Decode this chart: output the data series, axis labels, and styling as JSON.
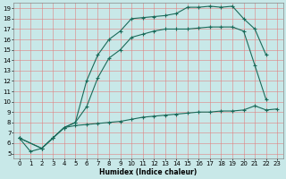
{
  "xlabel": "Humidex (Indice chaleur)",
  "bg_color": "#c8e8e8",
  "line_color": "#1a6b5a",
  "grid_color": "#e08080",
  "xlim": [
    -0.5,
    23.5
  ],
  "ylim": [
    4.5,
    19.5
  ],
  "xticks": [
    0,
    1,
    2,
    3,
    4,
    5,
    6,
    7,
    8,
    9,
    10,
    11,
    12,
    13,
    14,
    15,
    16,
    17,
    18,
    19,
    20,
    21,
    22,
    23
  ],
  "yticks": [
    5,
    6,
    7,
    8,
    9,
    10,
    11,
    12,
    13,
    14,
    15,
    16,
    17,
    18,
    19
  ],
  "line1_x": [
    0,
    1,
    2,
    3,
    4,
    5,
    6,
    7,
    8,
    9,
    10,
    11,
    12,
    13,
    14,
    15,
    16,
    17,
    18,
    19,
    20,
    21,
    22,
    23
  ],
  "line1_y": [
    6.5,
    5.2,
    5.5,
    6.5,
    7.5,
    7.7,
    7.8,
    7.9,
    8.0,
    8.1,
    8.3,
    8.5,
    8.6,
    8.7,
    8.8,
    8.9,
    9.0,
    9.0,
    9.1,
    9.1,
    9.2,
    9.6,
    9.2,
    9.3
  ],
  "line2_x": [
    0,
    2,
    3,
    4,
    5,
    6,
    7,
    8,
    9,
    10,
    11,
    12,
    13,
    14,
    15,
    16,
    17,
    18,
    19,
    20,
    21,
    22
  ],
  "line2_y": [
    6.5,
    5.5,
    6.5,
    7.5,
    8.0,
    12.0,
    14.5,
    16.0,
    16.8,
    18.0,
    18.1,
    18.2,
    18.3,
    18.5,
    19.1,
    19.1,
    19.2,
    19.1,
    19.2,
    18.0,
    17.0,
    14.5
  ],
  "line3_x": [
    0,
    2,
    3,
    4,
    5,
    6,
    7,
    8,
    9,
    10,
    11,
    12,
    13,
    14,
    15,
    16,
    17,
    18,
    19,
    20,
    21,
    22
  ],
  "line3_y": [
    6.5,
    5.5,
    6.5,
    7.5,
    8.0,
    9.5,
    12.3,
    14.2,
    15.0,
    16.2,
    16.5,
    16.8,
    17.0,
    17.0,
    17.0,
    17.1,
    17.2,
    17.2,
    17.2,
    16.8,
    13.5,
    10.2
  ],
  "tick_fontsize": 5,
  "xlabel_fontsize": 5.5,
  "marker": "+",
  "markersize": 3,
  "linewidth": 0.8
}
